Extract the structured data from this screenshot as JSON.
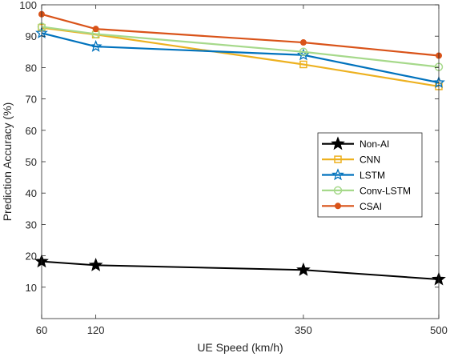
{
  "chart_data": {
    "type": "line",
    "xlabel": "UE Speed (km/h)",
    "ylabel": "Prediction Accuracy (%)",
    "x": [
      60,
      120,
      350,
      500
    ],
    "xticks": [
      "60",
      "120",
      "350",
      "500"
    ],
    "xlim": [
      60,
      500
    ],
    "ylim": [
      0,
      100
    ],
    "yticks": [
      "10",
      "20",
      "30",
      "40",
      "50",
      "60",
      "70",
      "80",
      "90",
      "100"
    ],
    "grid": false,
    "legend_position": "center-right",
    "series": [
      {
        "name": "Non-AI",
        "values": [
          18.2,
          17.0,
          15.5,
          12.5
        ],
        "color": "#000000",
        "marker": "star"
      },
      {
        "name": "CNN",
        "values": [
          92.7,
          90.5,
          81.0,
          74.0
        ],
        "color": "#EDB120",
        "marker": "square"
      },
      {
        "name": "LSTM",
        "values": [
          91.0,
          86.7,
          84.0,
          75.2
        ],
        "color": "#0072BD",
        "marker": "star"
      },
      {
        "name": "Conv-LSTM",
        "values": [
          93.0,
          90.7,
          85.0,
          80.2
        ],
        "color": "#A6D98B",
        "marker": "circle"
      },
      {
        "name": "CSAI",
        "values": [
          97.0,
          92.3,
          88.0,
          83.8
        ],
        "color": "#D95319",
        "marker": "dot"
      }
    ]
  }
}
